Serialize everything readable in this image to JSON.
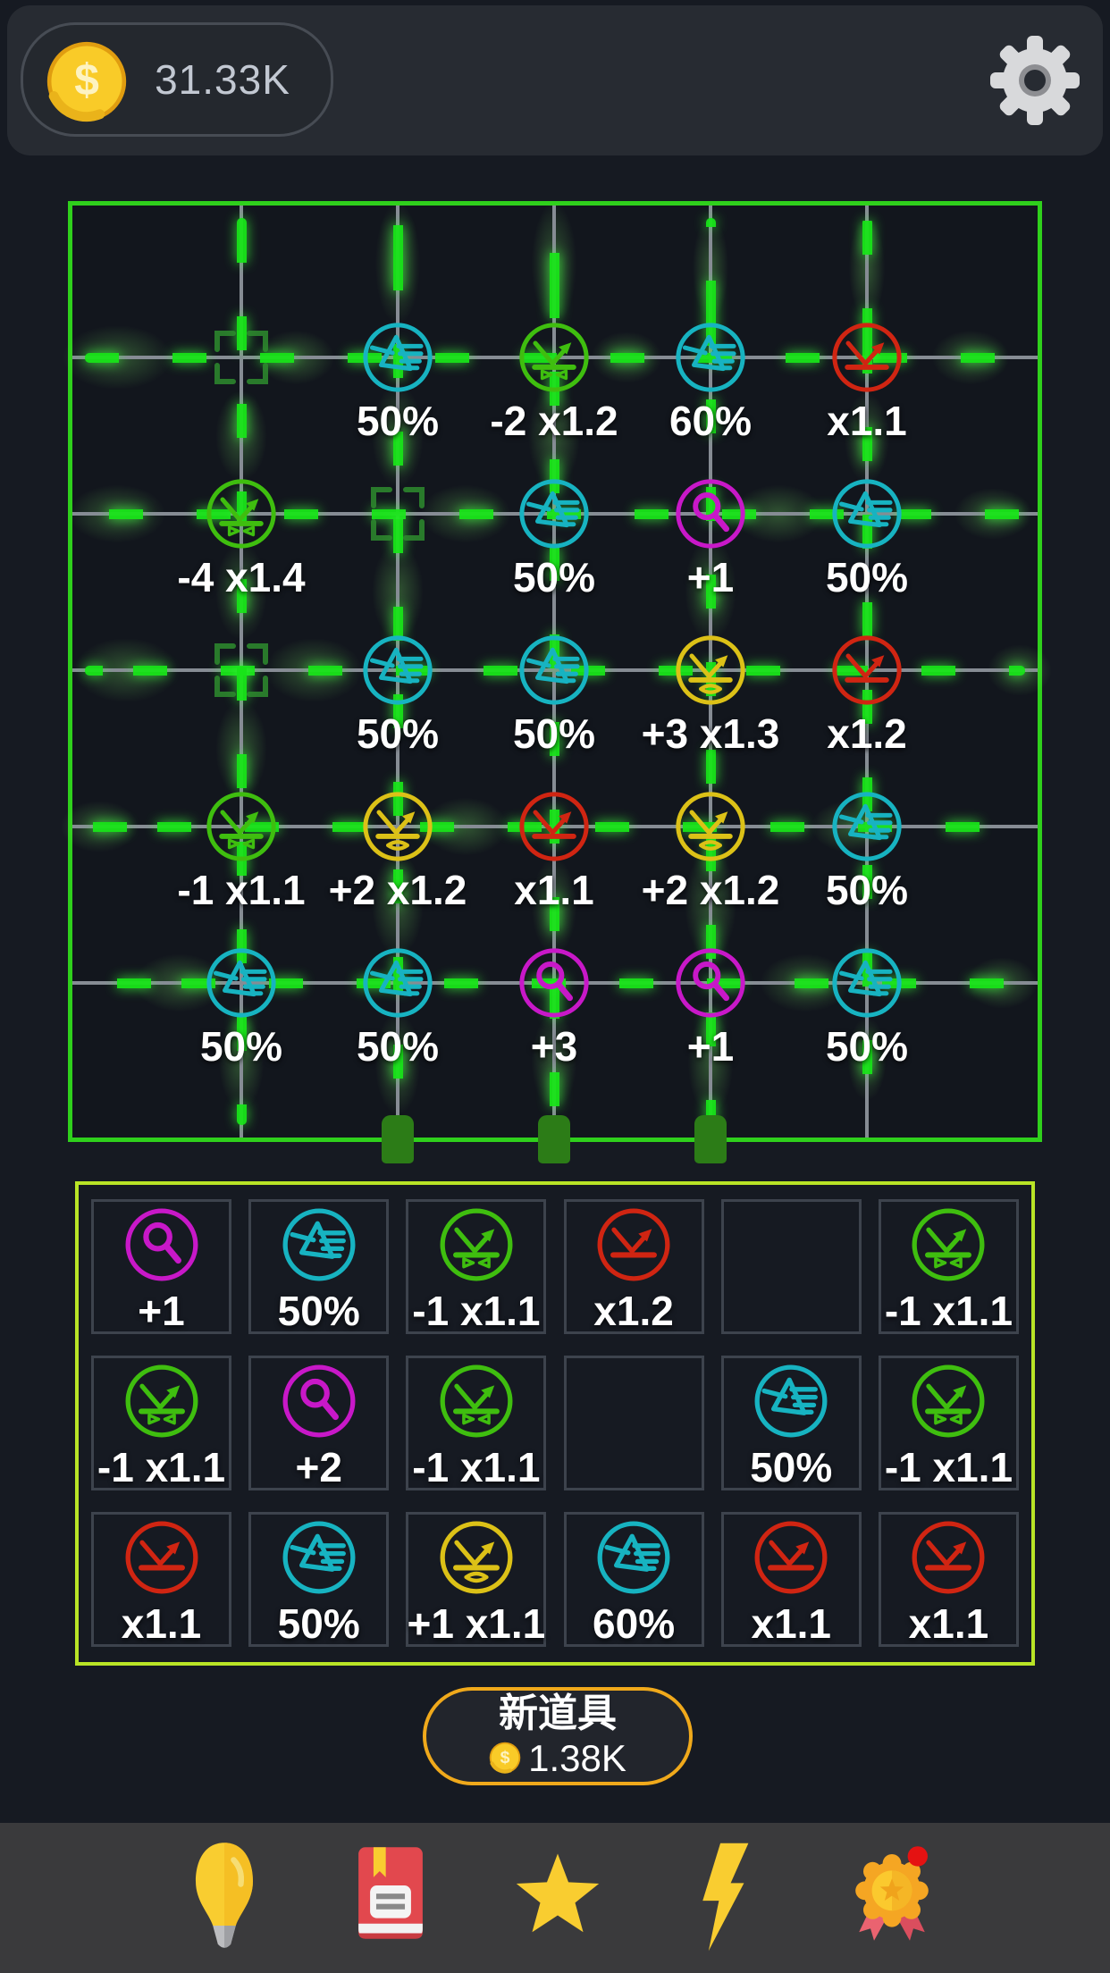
{
  "header": {
    "currency": "31.33K"
  },
  "board": {
    "grid": {
      "rows": 5,
      "cols": 5
    },
    "items": [
      {
        "row": 1,
        "col": 2,
        "type": "prism",
        "label": "50%"
      },
      {
        "row": 1,
        "col": 3,
        "type": "bounce_bowtie",
        "label": "-2 x1.2"
      },
      {
        "row": 1,
        "col": 4,
        "type": "prism",
        "label": "60%"
      },
      {
        "row": 1,
        "col": 5,
        "type": "bounce",
        "label": "x1.1"
      },
      {
        "row": 2,
        "col": 1,
        "type": "bounce_bowtie",
        "label": "-4 x1.4"
      },
      {
        "row": 2,
        "col": 3,
        "type": "prism",
        "label": "50%"
      },
      {
        "row": 2,
        "col": 4,
        "type": "magnifier",
        "label": "+1"
      },
      {
        "row": 2,
        "col": 5,
        "type": "prism",
        "label": "50%"
      },
      {
        "row": 3,
        "col": 2,
        "type": "prism",
        "label": "50%"
      },
      {
        "row": 3,
        "col": 3,
        "type": "prism",
        "label": "50%"
      },
      {
        "row": 3,
        "col": 4,
        "type": "bounce_eye",
        "label": "+3 x1.3"
      },
      {
        "row": 3,
        "col": 5,
        "type": "bounce",
        "label": "x1.2"
      },
      {
        "row": 4,
        "col": 1,
        "type": "bounce_bowtie",
        "label": "-1 x1.1"
      },
      {
        "row": 4,
        "col": 2,
        "type": "bounce_eye",
        "label": "+2 x1.2"
      },
      {
        "row": 4,
        "col": 3,
        "type": "bounce",
        "label": "x1.1"
      },
      {
        "row": 4,
        "col": 4,
        "type": "bounce_eye",
        "label": "+2 x1.2"
      },
      {
        "row": 4,
        "col": 5,
        "type": "prism",
        "label": "50%"
      },
      {
        "row": 5,
        "col": 1,
        "type": "prism",
        "label": "50%"
      },
      {
        "row": 5,
        "col": 2,
        "type": "prism",
        "label": "50%"
      },
      {
        "row": 5,
        "col": 3,
        "type": "magnifier",
        "label": "+3"
      },
      {
        "row": 5,
        "col": 4,
        "type": "magnifier",
        "label": "+1"
      },
      {
        "row": 5,
        "col": 5,
        "type": "prism",
        "label": "50%"
      }
    ],
    "markers": [
      {
        "row": 1,
        "col": 1
      },
      {
        "row": 2,
        "col": 2
      },
      {
        "row": 3,
        "col": 1
      }
    ],
    "plug_columns": [
      2,
      3,
      4
    ]
  },
  "inventory": {
    "rows": 3,
    "cols": 6,
    "slots": [
      {
        "type": "magnifier",
        "label": "+1"
      },
      {
        "type": "prism",
        "label": "50%"
      },
      {
        "type": "bounce_bowtie",
        "label": "-1 x1.1"
      },
      {
        "type": "bounce",
        "label": "x1.2"
      },
      null,
      {
        "type": "bounce_bowtie",
        "label": "-1 x1.1"
      },
      {
        "type": "bounce_bowtie",
        "label": "-1 x1.1"
      },
      {
        "type": "magnifier",
        "label": "+2"
      },
      {
        "type": "bounce_bowtie",
        "label": "-1 x1.1"
      },
      null,
      {
        "type": "prism",
        "label": "50%"
      },
      {
        "type": "bounce_bowtie",
        "label": "-1 x1.1"
      },
      {
        "type": "bounce",
        "label": "x1.1"
      },
      {
        "type": "prism",
        "label": "50%"
      },
      {
        "type": "bounce_eye",
        "label": "+1 x1.1"
      },
      {
        "type": "prism",
        "label": "60%"
      },
      {
        "type": "bounce",
        "label": "x1.1"
      },
      {
        "type": "bounce",
        "label": "x1.1"
      }
    ]
  },
  "new_item_button": {
    "label": "新道具",
    "cost": "1.38K"
  },
  "nav": [
    {
      "name": "hint",
      "icon": "lightbulb-icon",
      "badge": false
    },
    {
      "name": "handbook",
      "icon": "book-icon",
      "badge": false
    },
    {
      "name": "favorites",
      "icon": "star-icon",
      "badge": false
    },
    {
      "name": "energy",
      "icon": "lightning-icon",
      "badge": false
    },
    {
      "name": "achievements",
      "icon": "medal-icon",
      "badge": true
    }
  ],
  "palette": {
    "prism": "#17b3c1",
    "magnifier": "#c818c8",
    "bounce": "#d02512",
    "bounce_bowtie": "#3fbe0f",
    "bounce_eye": "#dcc117",
    "board_border": "#2fd01c",
    "inventory_border": "#b9e426",
    "button_border": "#f0a91b",
    "coin_gold": "#f9cb28"
  }
}
